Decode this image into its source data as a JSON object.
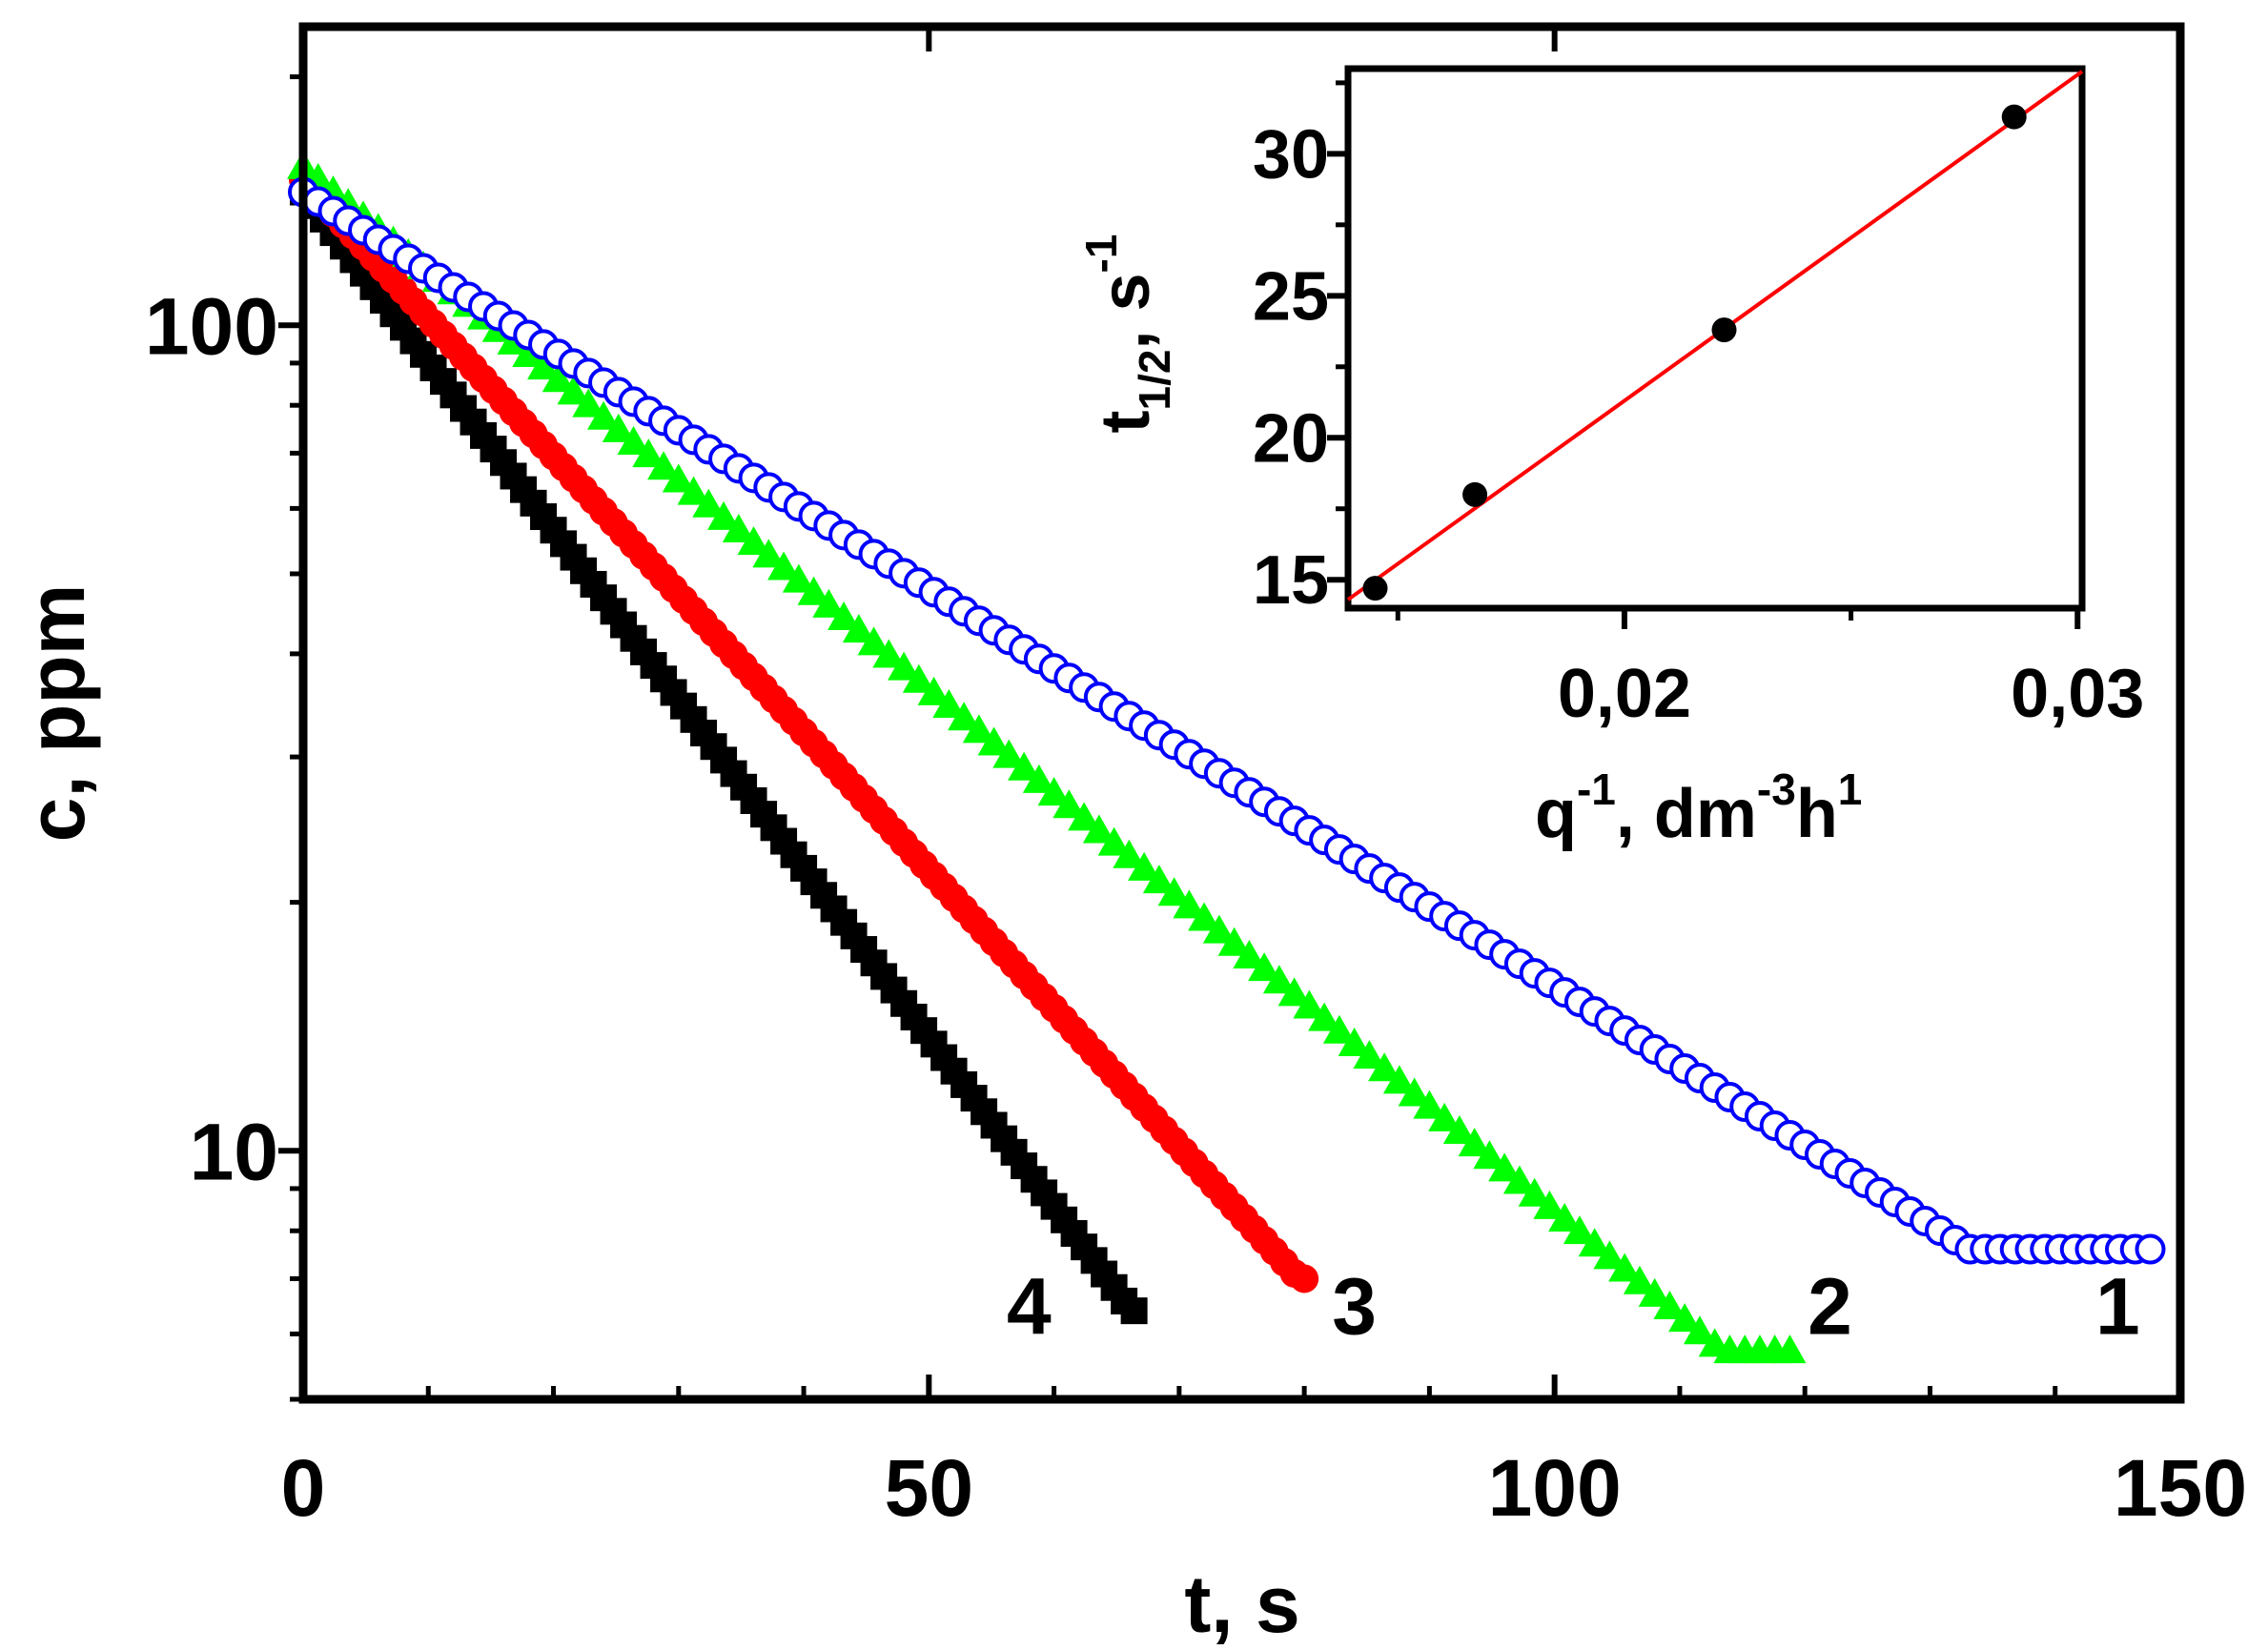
{
  "chart_data": [
    {
      "type": "scatter",
      "title": "",
      "xlabel": "t, s",
      "ylabel": "c, ppm",
      "xscale": "linear",
      "yscale": "log",
      "xlim": [
        0,
        150
      ],
      "ylim": [
        5,
        230
      ],
      "x_ticks": [
        0,
        50,
        100,
        150
      ],
      "x_tick_labels": [
        "0",
        "50",
        "100",
        "150"
      ],
      "y_ticks": [
        10,
        100
      ],
      "y_tick_labels": [
        "10",
        "100"
      ],
      "grid": false,
      "series": [
        {
          "label": "1",
          "marker": "open-circle",
          "color": "#0000ff",
          "c0": 145,
          "t_half": 31.3,
          "t_end": 147,
          "dt": 1.2,
          "c_min": 7.6,
          "label_at": [
            145,
            6.5
          ]
        },
        {
          "label": "2",
          "marker": "triangle",
          "color": "#00ff00",
          "c0": 155,
          "t_half": 23.8,
          "t_end": 119,
          "dt": 1.2,
          "c_min": 5.7,
          "label_at": [
            122,
            6.5
          ]
        },
        {
          "label": "3",
          "marker": "filled-circle",
          "color": "#ff0000",
          "c0": 150,
          "t_half": 18.0,
          "t_end": 80,
          "dt": 0.8,
          "c_min": 7.0,
          "label_at": [
            84,
            6.5
          ]
        },
        {
          "label": "4",
          "marker": "square",
          "color": "#000000",
          "c0": 145,
          "t_half": 14.7,
          "t_end": 66,
          "dt": 0.8,
          "c_min": 6.4,
          "label_at": [
            58,
            6.5
          ]
        }
      ]
    },
    {
      "type": "scatter",
      "title": "",
      "xlabel": "q-1, dm-3h1",
      "ylabel": "t1/2, s-1",
      "xlim": [
        0.0139,
        0.0301
      ],
      "ylim": [
        14,
        33
      ],
      "x_ticks": [
        0.02,
        0.03
      ],
      "x_tick_labels": [
        "0,02",
        "0,03"
      ],
      "x_minor_ticks": [
        0.015,
        0.025
      ],
      "y_ticks": [
        15,
        20,
        25,
        30
      ],
      "y_tick_labels": [
        "15",
        "20",
        "25",
        "30"
      ],
      "points": {
        "x": [
          0.0145,
          0.0167,
          0.0222,
          0.0286
        ],
        "y": [
          14.7,
          18.0,
          23.8,
          31.3
        ]
      },
      "fit_line": {
        "color": "#ff0000",
        "x": [
          0.0139,
          0.0301
        ],
        "y": [
          14.3,
          32.9
        ]
      },
      "point_color": "#000000"
    }
  ]
}
